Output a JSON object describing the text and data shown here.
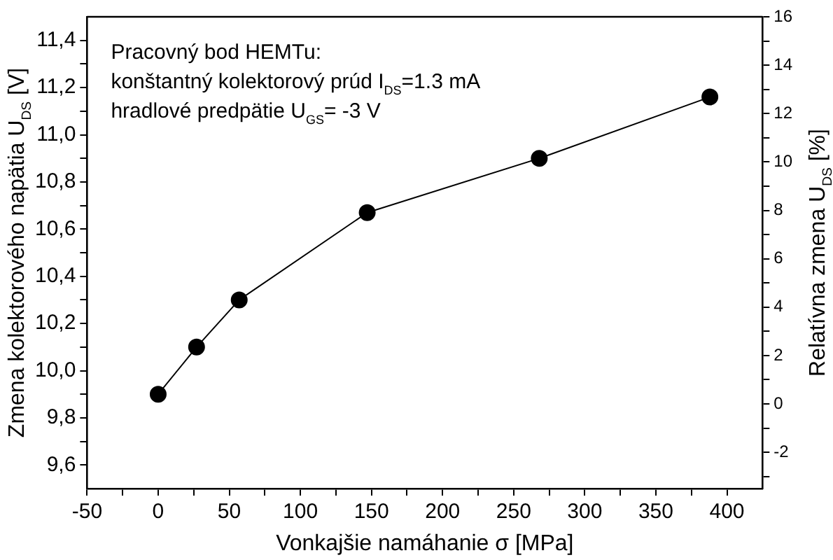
{
  "chart_data": {
    "type": "line",
    "xlabel": "Vonkajšie namáhanie σ [MPa]",
    "ylabel": "Zmena kolektorového napätia U$_{DS}$ [V]",
    "y2label": "Relatívna zmena U$_{DS}$ [%]",
    "annotations": [
      "Pracovný bod HEMTu:",
      "konštantný kolektorový prúd I$_{DS}$=1.3 mA",
      "hradlové predpätie U$_{GS}$= -3 V"
    ],
    "x": [
      0,
      27,
      57,
      147,
      268,
      388
    ],
    "series": [
      {
        "color": "#000000",
        "values": [
          9.9,
          10.1,
          10.3,
          10.67,
          10.9,
          11.16
        ]
      }
    ],
    "xlim": [
      -50,
      425
    ],
    "xticks": [
      -50,
      {
        "value": -25,
        "label": null
      },
      0,
      {
        "value": 25,
        "label": null
      },
      50,
      {
        "value": 75,
        "label": null
      },
      100,
      {
        "value": 125,
        "label": null
      },
      150,
      {
        "value": 175,
        "label": null
      },
      200,
      {
        "value": 225,
        "label": null
      },
      250,
      {
        "value": 275,
        "label": null
      },
      300,
      {
        "value": 325,
        "label": null
      },
      350,
      {
        "value": 375,
        "label": null
      },
      400
    ],
    "ylim": [
      9.5,
      11.5
    ],
    "yticks": [
      {
        "value": 9.6,
        "label": "9,6"
      },
      {
        "value": 9.7,
        "label": null
      },
      {
        "value": 9.8,
        "label": "9,8"
      },
      {
        "value": 9.9,
        "label": null
      },
      {
        "value": 10.0,
        "label": "10,0"
      },
      {
        "value": 10.1,
        "label": null
      },
      {
        "value": 10.2,
        "label": "10,2"
      },
      {
        "value": 10.3,
        "label": null
      },
      {
        "value": 10.4,
        "label": "10,4"
      },
      {
        "value": 10.5,
        "label": null
      },
      {
        "value": 10.6,
        "label": "10,6"
      },
      {
        "value": 10.7,
        "label": null
      },
      {
        "value": 10.8,
        "label": "10,8"
      },
      {
        "value": 10.9,
        "label": null
      },
      {
        "value": 11.0,
        "label": "11,0"
      },
      {
        "value": 11.1,
        "label": null
      },
      {
        "value": 11.2,
        "label": "11,2"
      },
      {
        "value": 11.3,
        "label": null
      },
      {
        "value": 11.4,
        "label": "11,4"
      }
    ],
    "y2lim": [
      -3.5,
      16
    ],
    "y2ticks": [
      {
        "value": -3,
        "label": null
      },
      -2,
      {
        "value": -1,
        "label": null
      },
      0,
      {
        "value": 1,
        "label": null
      },
      2,
      {
        "value": 3,
        "label": null
      },
      4,
      {
        "value": 5,
        "label": null
      },
      6,
      {
        "value": 7,
        "label": null
      },
      8,
      {
        "value": 9,
        "label": null
      },
      10,
      {
        "value": 11,
        "label": null
      },
      12,
      {
        "value": 13,
        "label": null
      },
      14,
      {
        "value": 15,
        "label": null
      },
      16
    ],
    "grid": false,
    "legend": false,
    "marker": "circle",
    "line_style": "solid"
  }
}
